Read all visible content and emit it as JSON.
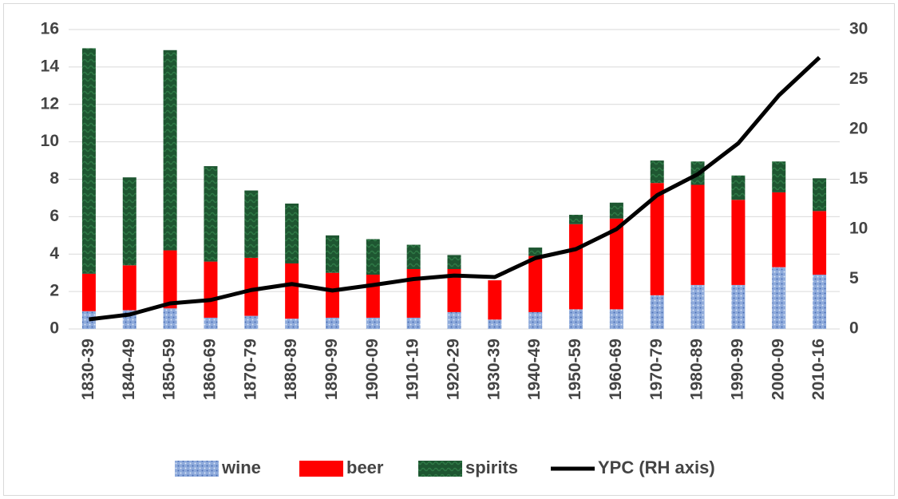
{
  "chart_data": {
    "type": "bar",
    "categories": [
      "1830-39",
      "1840-49",
      "1850-59",
      "1860-69",
      "1870-79",
      "1880-89",
      "1890-99",
      "1900-09",
      "1910-19",
      "1920-29",
      "1930-39",
      "1940-49",
      "1950-59",
      "1960-69",
      "1970-79",
      "1980-89",
      "1990-99",
      "2000-09",
      "2010-16"
    ],
    "stacked": true,
    "series": [
      {
        "name": "wine",
        "type": "bar",
        "color": "#8eaadb",
        "values": [
          0.95,
          1.0,
          1.1,
          0.6,
          0.7,
          0.55,
          0.6,
          0.6,
          0.6,
          0.9,
          0.5,
          0.9,
          1.05,
          1.05,
          1.8,
          2.35,
          2.35,
          3.3,
          2.9
        ]
      },
      {
        "name": "beer",
        "type": "bar",
        "color": "#ff0000",
        "values": [
          2.0,
          2.4,
          3.1,
          3.0,
          3.1,
          2.95,
          2.4,
          2.3,
          2.6,
          2.3,
          2.1,
          3.0,
          4.55,
          4.85,
          6.0,
          5.35,
          4.55,
          4.0,
          3.4
        ]
      },
      {
        "name": "spirits",
        "type": "bar",
        "color": "#1e5631",
        "values": [
          12.05,
          4.7,
          10.7,
          5.1,
          3.6,
          3.2,
          2.0,
          1.9,
          1.3,
          0.75,
          0,
          0.45,
          0.5,
          0.85,
          1.2,
          1.25,
          1.3,
          1.65,
          1.75
        ]
      },
      {
        "name": "YPC (RH axis)",
        "type": "line",
        "axis": "y2",
        "color": "#000000",
        "values": [
          0.96,
          1.44,
          2.56,
          2.9,
          3.9,
          4.5,
          3.85,
          4.4,
          5.0,
          5.35,
          5.2,
          7.1,
          8.0,
          10.0,
          13.4,
          15.5,
          18.6,
          23.4,
          27.2
        ]
      }
    ],
    "ylim": [
      0,
      16
    ],
    "yticks": [
      0,
      2,
      4,
      6,
      8,
      10,
      12,
      14,
      16
    ],
    "y2lim": [
      0,
      30
    ],
    "y2ticks": [
      0,
      5,
      10,
      15,
      20,
      25,
      30
    ],
    "grid": true,
    "legend": "bottom"
  }
}
